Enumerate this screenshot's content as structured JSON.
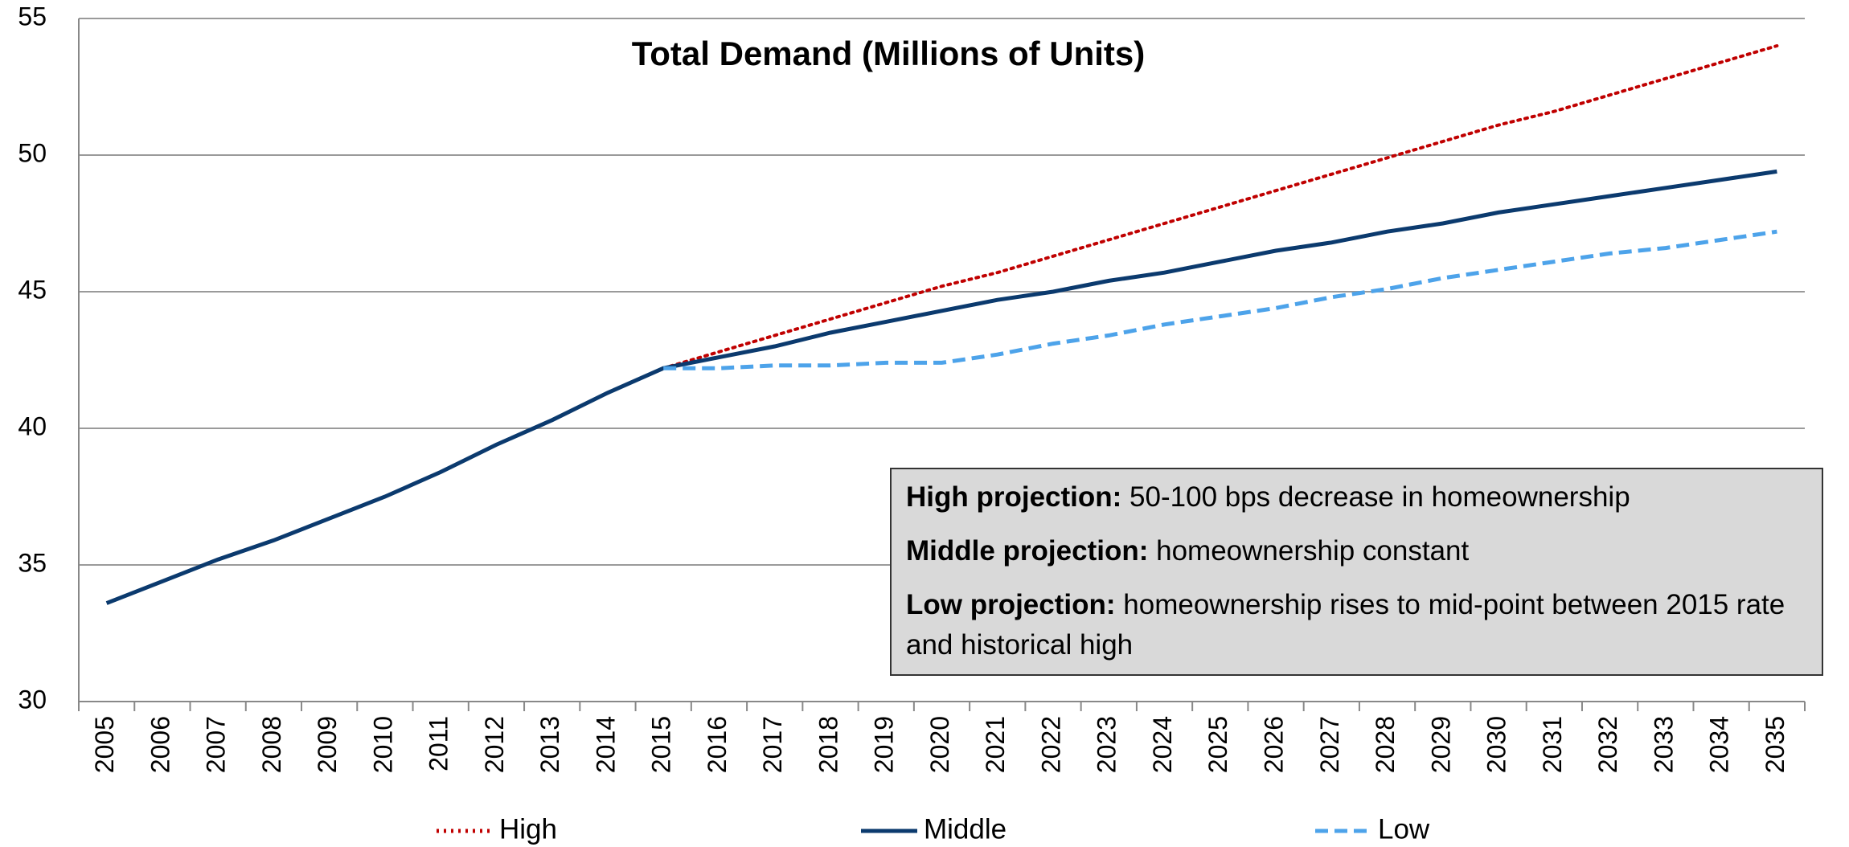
{
  "chart_data": {
    "type": "line",
    "title": "Total Demand (Millions of Units)",
    "categories": [
      "2005",
      "2006",
      "2007",
      "2008",
      "2009",
      "2010",
      "2011",
      "2012",
      "2013",
      "2014",
      "2015",
      "2016",
      "2017",
      "2018",
      "2019",
      "2020",
      "2021",
      "2022",
      "2023",
      "2024",
      "2025",
      "2026",
      "2027",
      "2028",
      "2029",
      "2030",
      "2031",
      "2032",
      "2033",
      "2034",
      "2035"
    ],
    "series": [
      {
        "name": "High",
        "color": "#c00000",
        "style": "dotted",
        "values": [
          null,
          null,
          null,
          null,
          null,
          null,
          null,
          null,
          null,
          null,
          42.2,
          42.8,
          43.4,
          44.0,
          44.6,
          45.2,
          45.7,
          46.3,
          46.9,
          47.5,
          48.1,
          48.7,
          49.3,
          49.9,
          50.5,
          51.1,
          51.6,
          52.2,
          52.8,
          53.4,
          54.0
        ]
      },
      {
        "name": "Middle",
        "color": "#0b3a6e",
        "style": "solid",
        "values": [
          33.6,
          34.4,
          35.2,
          35.9,
          36.7,
          37.5,
          38.4,
          39.4,
          40.3,
          41.3,
          42.2,
          42.6,
          43.0,
          43.5,
          43.9,
          44.3,
          44.7,
          45.0,
          45.4,
          45.7,
          46.1,
          46.5,
          46.8,
          47.2,
          47.5,
          47.9,
          48.2,
          48.5,
          48.8,
          49.1,
          49.4
        ]
      },
      {
        "name": "Low",
        "color": "#4da3ea",
        "style": "dashed",
        "values": [
          null,
          null,
          null,
          null,
          null,
          null,
          null,
          null,
          null,
          null,
          42.2,
          42.2,
          42.3,
          42.3,
          42.4,
          42.4,
          42.7,
          43.1,
          43.4,
          43.8,
          44.1,
          44.4,
          44.8,
          45.1,
          45.5,
          45.8,
          46.1,
          46.4,
          46.6,
          46.9,
          47.2
        ]
      }
    ],
    "ylim": [
      30,
      55
    ],
    "yticks": [
      30,
      35,
      40,
      45,
      50,
      55
    ],
    "grid": true,
    "legend": "bottom",
    "annotations": [
      {
        "label": "High projection:",
        "text": "50-100 bps decrease in homeownership"
      },
      {
        "label": "Middle projection:",
        "text": "homeownership constant"
      },
      {
        "label": "Low projection:",
        "text": "homeownership rises to mid-point between 2015 rate and historical high"
      }
    ]
  }
}
